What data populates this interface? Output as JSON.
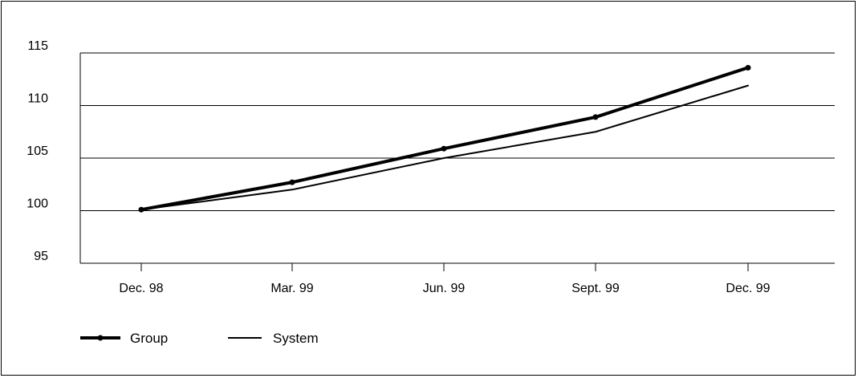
{
  "chart_data": {
    "type": "line",
    "title": "",
    "xlabel": "",
    "ylabel": "",
    "categories": [
      "Dec. 98",
      "Mar. 99",
      "Jun. 99",
      "Sept. 99",
      "Dec. 99"
    ],
    "ylim": [
      95,
      115
    ],
    "yticks": [
      "95",
      "100",
      "105",
      "110",
      "115"
    ],
    "grid": "horizontal",
    "legend_position": "bottom-left",
    "series": [
      {
        "name": "Group",
        "values": [
          100.1,
          102.7,
          105.9,
          108.9,
          113.6
        ],
        "color": "#000000",
        "markers": true,
        "style": "thick"
      },
      {
        "name": "System",
        "values": [
          100.1,
          102.0,
          105.0,
          107.5,
          111.9
        ],
        "color": "#000000",
        "markers": false,
        "style": "thin"
      }
    ]
  }
}
